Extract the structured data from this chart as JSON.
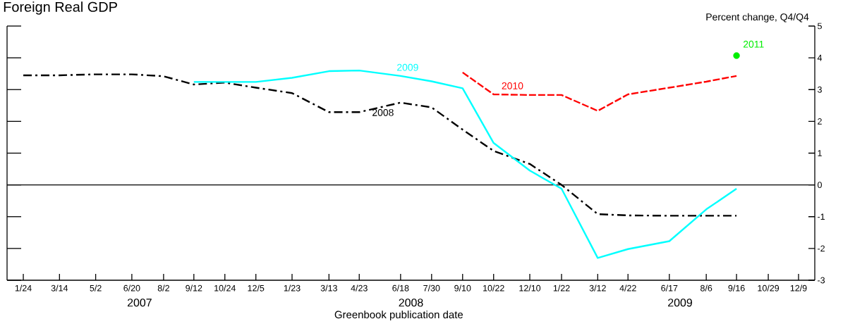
{
  "chart_data": {
    "type": "line",
    "title": "Foreign Real GDP",
    "ylabel": "Percent change, Q4/Q4",
    "xlabel": "Greenbook publication date",
    "annotations": [
      "2007",
      "2008",
      "2009"
    ],
    "x": [
      "2007-01-24",
      "2007-03-14",
      "2007-05-02",
      "2007-06-20",
      "2007-08-02",
      "2007-09-12",
      "2007-10-24",
      "2007-12-05",
      "2008-01-23",
      "2008-03-13",
      "2008-04-23",
      "2008-06-18",
      "2008-07-30",
      "2008-09-10",
      "2008-10-22",
      "2008-12-10",
      "2009-01-22",
      "2009-03-12",
      "2009-04-22",
      "2009-06-17",
      "2009-08-06",
      "2009-09-16"
    ],
    "series": [
      {
        "name": "2008",
        "color": "#000000",
        "line_style": "dashdot",
        "values": [
          3.45,
          3.45,
          3.48,
          3.48,
          3.42,
          3.16,
          3.22,
          3.06,
          2.89,
          2.29,
          2.29,
          2.59,
          2.44,
          1.74,
          1.07,
          0.66,
          0.0,
          -0.92,
          -0.96,
          -0.97,
          -0.97,
          -0.97
        ]
      },
      {
        "name": "2009",
        "color": "#00ffff",
        "line_style": "solid",
        "values": [
          null,
          null,
          null,
          null,
          null,
          3.24,
          3.24,
          3.24,
          3.37,
          3.58,
          3.6,
          3.43,
          3.26,
          3.04,
          1.32,
          0.45,
          -0.12,
          -2.3,
          -2.02,
          -1.77,
          -0.77,
          -0.12
        ]
      },
      {
        "name": "2010",
        "color": "#ff0000",
        "line_style": "dashed",
        "values": [
          null,
          null,
          null,
          null,
          null,
          null,
          null,
          null,
          null,
          null,
          null,
          null,
          null,
          3.54,
          2.85,
          2.83,
          2.83,
          2.33,
          2.85,
          3.06,
          3.25,
          3.43
        ]
      },
      {
        "name": "2011",
        "type": "scatter",
        "marker": "circle",
        "color": "#00ee00",
        "values": [
          null,
          null,
          null,
          null,
          null,
          null,
          null,
          null,
          null,
          null,
          null,
          null,
          null,
          null,
          null,
          null,
          null,
          null,
          null,
          null,
          null,
          4.07
        ]
      }
    ],
    "ref_lines": [
      {
        "axis": "y",
        "value": 0,
        "color": "#000000"
      }
    ],
    "xlim": [
      "2007-01-02",
      "2009-12-31"
    ],
    "xticks": [
      {
        "value": "2007-01-24",
        "label": "1/24"
      },
      {
        "value": "2007-03-14",
        "label": "3/14"
      },
      {
        "value": "2007-05-02",
        "label": "5/2"
      },
      {
        "value": "2007-06-20",
        "label": "6/20"
      },
      {
        "value": "2007-08-02",
        "label": "8/2"
      },
      {
        "value": "2007-09-12",
        "label": "9/12"
      },
      {
        "value": "2007-10-24",
        "label": "10/24"
      },
      {
        "value": "2007-12-05",
        "label": "12/5"
      },
      {
        "value": "2008-01-23",
        "label": "1/23"
      },
      {
        "value": "2008-03-13",
        "label": "3/13"
      },
      {
        "value": "2008-04-23",
        "label": "4/23"
      },
      {
        "value": "2008-06-18",
        "label": "6/18"
      },
      {
        "value": "2008-07-30",
        "label": "7/30"
      },
      {
        "value": "2008-09-10",
        "label": "9/10"
      },
      {
        "value": "2008-10-22",
        "label": "10/22"
      },
      {
        "value": "2008-12-10",
        "label": "12/10"
      },
      {
        "value": "2009-01-22",
        "label": "1/22"
      },
      {
        "value": "2009-03-12",
        "label": "3/12"
      },
      {
        "value": "2009-04-22",
        "label": "4/22"
      },
      {
        "value": "2009-06-17",
        "label": "6/17"
      },
      {
        "value": "2009-08-06",
        "label": "8/6"
      },
      {
        "value": "2009-09-16",
        "label": "9/16"
      },
      {
        "value": "2009-10-29",
        "label": "10/29"
      },
      {
        "value": "2009-12-09",
        "label": "12/9"
      }
    ],
    "ylim": [
      -3,
      5
    ],
    "yticks": [
      -3,
      -2,
      -1,
      0,
      1,
      2,
      3,
      4,
      5
    ],
    "grid": false
  }
}
